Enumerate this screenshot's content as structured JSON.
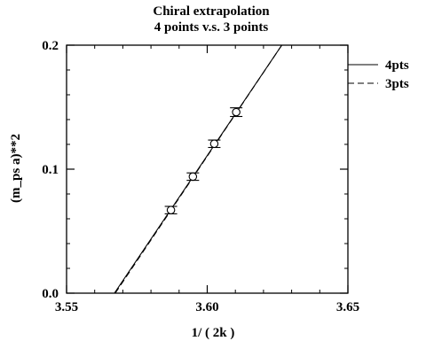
{
  "chart_data": {
    "type": "scatter",
    "title": "Chiral extrapolation",
    "subtitle": "4 points v.s.  3 points",
    "xlabel": "1/ ( 2k )",
    "ylabel": "(m_ps  a)**2",
    "xlim": [
      3.55,
      3.65
    ],
    "ylim": [
      0.0,
      0.2
    ],
    "x_ticks": [
      {
        "value": 3.55,
        "label": "3.55"
      },
      {
        "value": 3.6,
        "label": "3.60"
      },
      {
        "value": 3.65,
        "label": "3.65"
      }
    ],
    "y_ticks": [
      {
        "value": 0.0,
        "label": "0.0"
      },
      {
        "value": 0.1,
        "label": "0.1"
      },
      {
        "value": 0.2,
        "label": "0.2"
      }
    ],
    "grid": false,
    "legend_position": "top-right",
    "points": [
      {
        "x": 3.5871,
        "y": 0.067,
        "err": 0.003
      },
      {
        "x": 3.5949,
        "y": 0.094,
        "err": 0.003
      },
      {
        "x": 3.6025,
        "y": 0.1205,
        "err": 0.003
      },
      {
        "x": 3.6103,
        "y": 0.146,
        "err": 0.0035
      }
    ],
    "series": [
      {
        "name": "4pts",
        "style": "solid",
        "x": [
          3.567,
          3.6265
        ],
        "y": [
          0.0,
          0.2
        ]
      },
      {
        "name": "3pts",
        "style": "dashed",
        "x": [
          3.5673,
          3.6265
        ],
        "y": [
          0.0,
          0.2
        ]
      }
    ],
    "colors": {
      "line": "#000000",
      "background": "#ffffff"
    }
  }
}
